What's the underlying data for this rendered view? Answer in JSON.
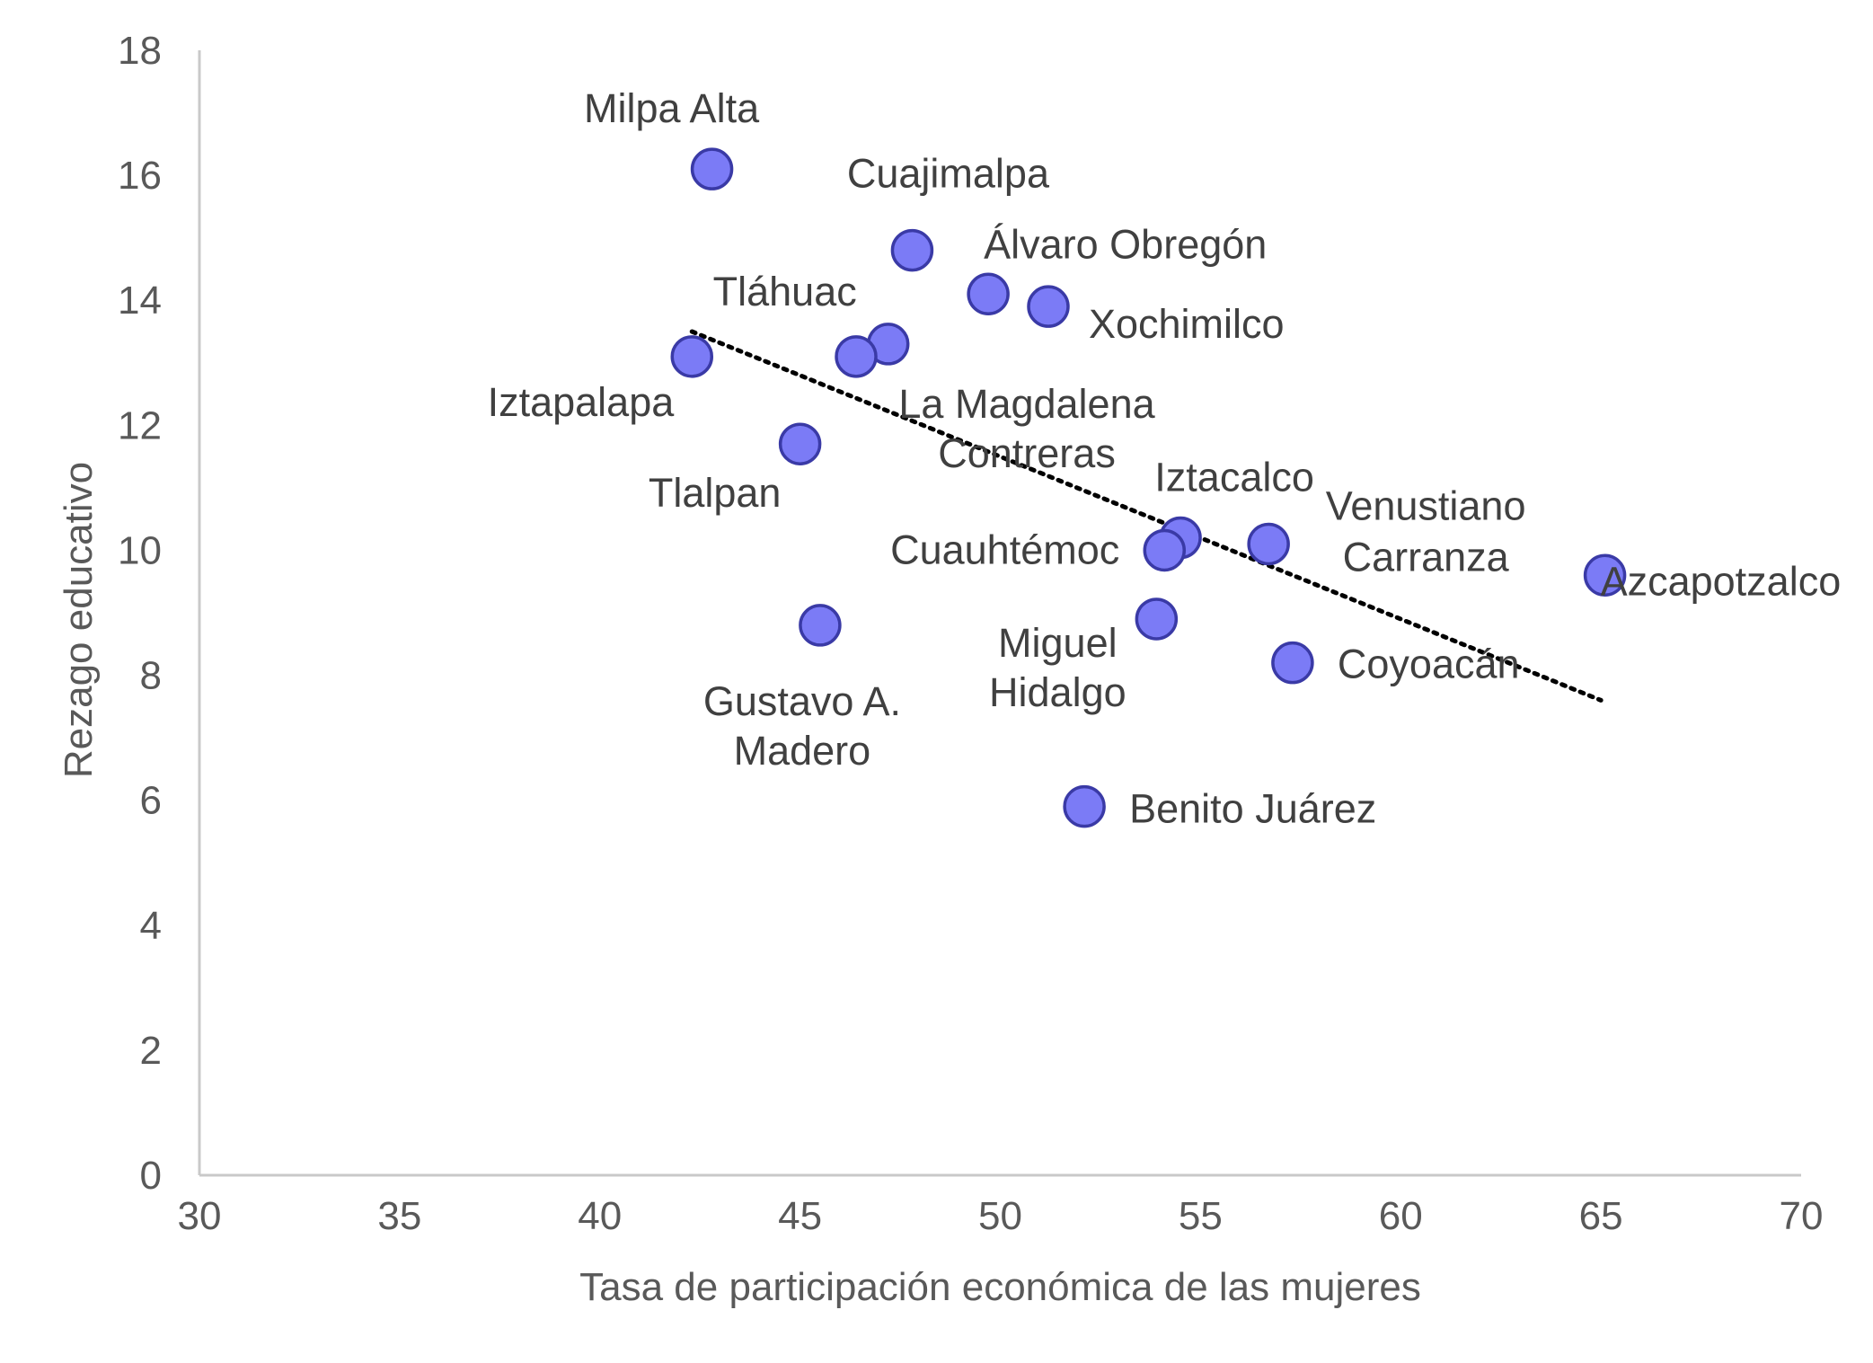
{
  "colors": {
    "marker_fill": "#7b7bf6",
    "marker_stroke": "#3a3aa6",
    "axis": "#c9c9c9",
    "tick_text": "#595959",
    "label_text": "#404040",
    "trendline": "#000000"
  },
  "chart_data": {
    "type": "scatter",
    "title": "",
    "xlabel": "Tasa de participación económica de las mujeres",
    "ylabel": "Rezago educativo",
    "xlim": [
      30,
      70
    ],
    "ylim": [
      0,
      18
    ],
    "xticks": [
      30,
      35,
      40,
      45,
      50,
      55,
      60,
      65,
      70
    ],
    "yticks": [
      0,
      2,
      4,
      6,
      8,
      10,
      12,
      14,
      16,
      18
    ],
    "grid": false,
    "legend": "none",
    "trendline": {
      "style": "dotted",
      "x_start": 42.3,
      "y_start": 13.5,
      "x_end": 65.0,
      "y_end": 7.6
    },
    "points": [
      {
        "label": "Milpa Alta",
        "x": 42.8,
        "y": 16.1
      },
      {
        "label": "Cuajimalpa",
        "x": 47.8,
        "y": 14.8
      },
      {
        "label": "Álvaro Obregón",
        "x": 49.7,
        "y": 14.1
      },
      {
        "label": "Xochimilco",
        "x": 51.2,
        "y": 13.9
      },
      {
        "label": "Tláhuac",
        "x": 47.2,
        "y": 13.3
      },
      {
        "label": "La Magdalena Contreras",
        "x": 46.4,
        "y": 13.1
      },
      {
        "label": "Iztapalapa",
        "x": 42.3,
        "y": 13.1
      },
      {
        "label": "Tlalpan",
        "x": 45.0,
        "y": 11.7
      },
      {
        "label": "Iztacalco",
        "x": 54.5,
        "y": 10.2
      },
      {
        "label": "Cuauhtémoc",
        "x": 54.1,
        "y": 10.0
      },
      {
        "label": "Venustiano Carranza",
        "x": 56.7,
        "y": 10.1
      },
      {
        "label": "Azcapotzalco",
        "x": 65.1,
        "y": 9.6
      },
      {
        "label": "Gustavo A. Madero",
        "x": 45.5,
        "y": 8.8
      },
      {
        "label": "Miguel Hidalgo",
        "x": 53.9,
        "y": 8.9
      },
      {
        "label": "Coyoacán",
        "x": 57.3,
        "y": 8.2
      },
      {
        "label": "Benito Juárez",
        "x": 52.1,
        "y": 5.9
      }
    ]
  }
}
